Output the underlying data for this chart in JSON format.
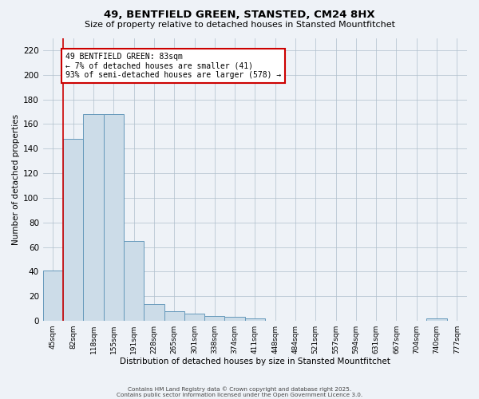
{
  "title": "49, BENTFIELD GREEN, STANSTED, CM24 8HX",
  "subtitle": "Size of property relative to detached houses in Stansted Mountfitchet",
  "xlabel": "Distribution of detached houses by size in Stansted Mountfitchet",
  "ylabel": "Number of detached properties",
  "bar_color": "#ccdce8",
  "bar_edge_color": "#6699bb",
  "annotation_box_color": "#cc0000",
  "annotation_text": "49 BENTFIELD GREEN: 83sqm\n← 7% of detached houses are smaller (41)\n93% of semi-detached houses are larger (578) →",
  "vline_color": "#cc0000",
  "categories": [
    "45sqm",
    "82sqm",
    "118sqm",
    "155sqm",
    "191sqm",
    "228sqm",
    "265sqm",
    "301sqm",
    "338sqm",
    "374sqm",
    "411sqm",
    "448sqm",
    "484sqm",
    "521sqm",
    "557sqm",
    "594sqm",
    "631sqm",
    "667sqm",
    "704sqm",
    "740sqm",
    "777sqm"
  ],
  "values": [
    41,
    148,
    168,
    168,
    65,
    14,
    8,
    6,
    4,
    3,
    2,
    0,
    0,
    0,
    0,
    0,
    0,
    0,
    0,
    2,
    0
  ],
  "ylim": [
    0,
    230
  ],
  "yticks": [
    0,
    20,
    40,
    60,
    80,
    100,
    120,
    140,
    160,
    180,
    200,
    220
  ],
  "footer1": "Contains HM Land Registry data © Crown copyright and database right 2025.",
  "footer2": "Contains public sector information licensed under the Open Government Licence 3.0.",
  "background_color": "#eef2f7",
  "grid_color": "#b0bfcc"
}
